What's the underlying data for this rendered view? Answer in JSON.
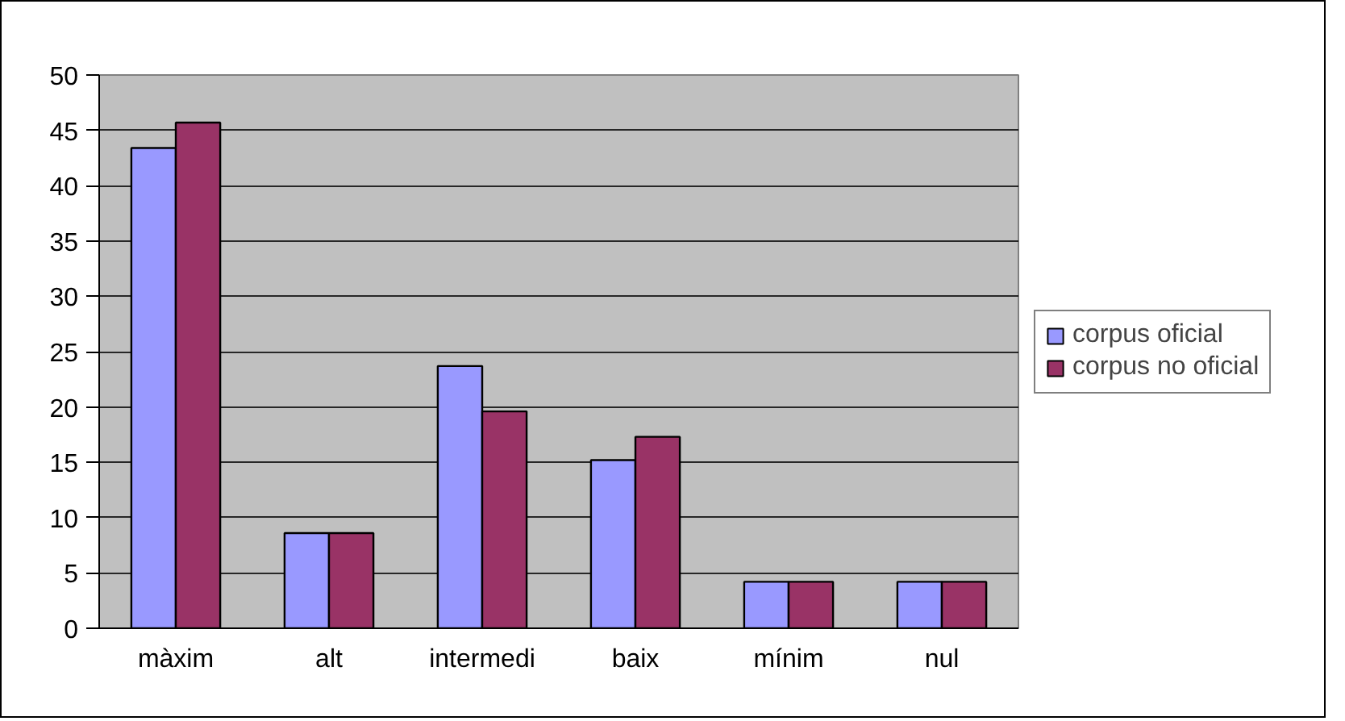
{
  "chart_data": {
    "type": "bar",
    "categories": [
      "màxim",
      "alt",
      "intermedi",
      "baix",
      "mínim",
      "nul"
    ],
    "series": [
      {
        "name": "corpus oficial",
        "color": "#9999ff",
        "values": [
          43.4,
          8.6,
          23.7,
          15.2,
          4.2,
          4.2
        ]
      },
      {
        "name": "corpus no oficial",
        "color": "#993366",
        "values": [
          45.7,
          8.6,
          19.6,
          17.3,
          4.2,
          4.2
        ]
      }
    ],
    "ylim": [
      0,
      50
    ],
    "yticks": [
      0,
      5,
      10,
      15,
      20,
      25,
      30,
      35,
      40,
      45,
      50
    ],
    "grid": "y",
    "legend": "right"
  }
}
